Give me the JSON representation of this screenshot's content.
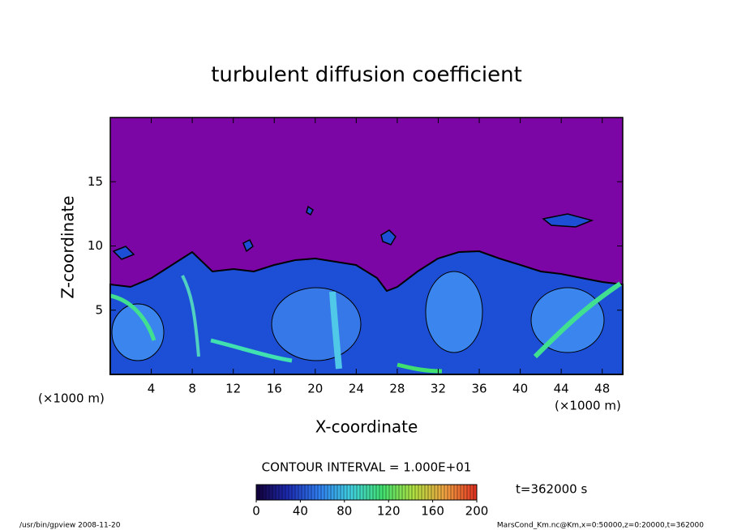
{
  "chart_data": {
    "type": "contour",
    "title": "turbulent diffusion coefficient",
    "xlabel": "X-coordinate",
    "ylabel": "Z-coordinate",
    "x_unit_left": "(×1000 m)",
    "x_unit_right": "(×1000 m)",
    "xlim": [
      0,
      50
    ],
    "ylim": [
      0,
      20
    ],
    "xticks": [
      4,
      8,
      12,
      16,
      20,
      24,
      28,
      32,
      36,
      40,
      44,
      48
    ],
    "yticks": [
      5,
      10,
      15
    ],
    "contour_interval": "CONTOUR INTERVAL = 1.000E+01",
    "time_label": "t=362000 s",
    "colorbar": {
      "lim": [
        0,
        200
      ],
      "ticks": [
        0,
        40,
        80,
        120,
        160,
        200
      ],
      "colormap": [
        "#12003a",
        "#1c2ab0",
        "#2f7ef0",
        "#40d0e0",
        "#40e070",
        "#b0e040",
        "#f0a040",
        "#e03020"
      ]
    },
    "footer_left": "/usr/bin/gpview  2008-11-20",
    "footer_right": "MarsCond_Km.nc@Km,x=0:50000,z=0:20000,t=362000"
  }
}
